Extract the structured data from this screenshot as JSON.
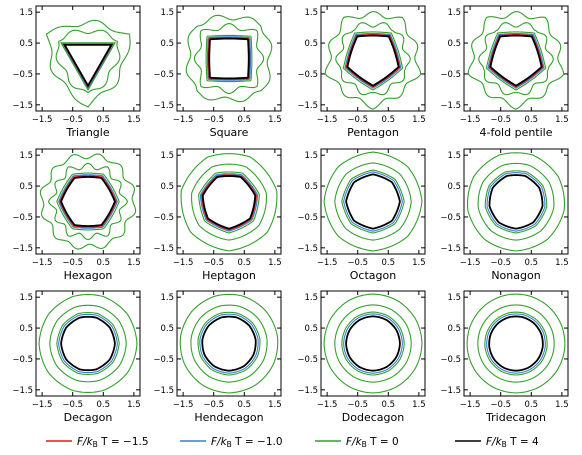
{
  "chart_data": {
    "type": "line",
    "layout": {
      "rows": 3,
      "cols": 4
    },
    "axes": {
      "xlim": [
        -1.7,
        1.7
      ],
      "ylim": [
        -1.7,
        1.7
      ],
      "xticks": [
        -1.5,
        -0.5,
        0.5,
        1.5
      ],
      "xtick_labels": [
        "−1.5",
        "−0.5",
        "0.5",
        "1.5"
      ],
      "yticks": [
        -1.5,
        -0.5,
        0.5,
        1.5
      ],
      "ytick_labels": [
        "−1.5",
        "−0.5",
        "0.5",
        "1.5"
      ],
      "grid": false
    },
    "series": [
      {
        "key": "m15",
        "label_prefix": "F/k",
        "label_sub": "B",
        "label_suffix": " T = −1.5",
        "color": "#e31a1c"
      },
      {
        "key": "m10",
        "label_prefix": "F/k",
        "label_sub": "B",
        "label_suffix": " T = −1.0",
        "color": "#3a7dd1"
      },
      {
        "key": "z0",
        "label_prefix": "F/k",
        "label_sub": "B",
        "label_suffix": " T = 0",
        "color": "#33a02c"
      },
      {
        "key": "p4",
        "label_prefix": "F/k",
        "label_sub": "B",
        "label_suffix": " T = 4",
        "color": "#000000"
      }
    ],
    "legend_position": "bottom",
    "panels": [
      {
        "name": "Triangle",
        "sides": 3
      },
      {
        "name": "Square",
        "sides": 4
      },
      {
        "name": "Pentagon",
        "sides": 5
      },
      {
        "name": "4-fold pentile",
        "sides": 5
      },
      {
        "name": "Hexagon",
        "sides": 6
      },
      {
        "name": "Heptagon",
        "sides": 7
      },
      {
        "name": "Octagon",
        "sides": 8
      },
      {
        "name": "Nonagon",
        "sides": 9
      },
      {
        "name": "Decagon",
        "sides": 10
      },
      {
        "name": "Hendecagon",
        "sides": 11
      },
      {
        "name": "Dodecagon",
        "sides": 12
      },
      {
        "name": "Tridecagon",
        "sides": 13
      }
    ]
  }
}
